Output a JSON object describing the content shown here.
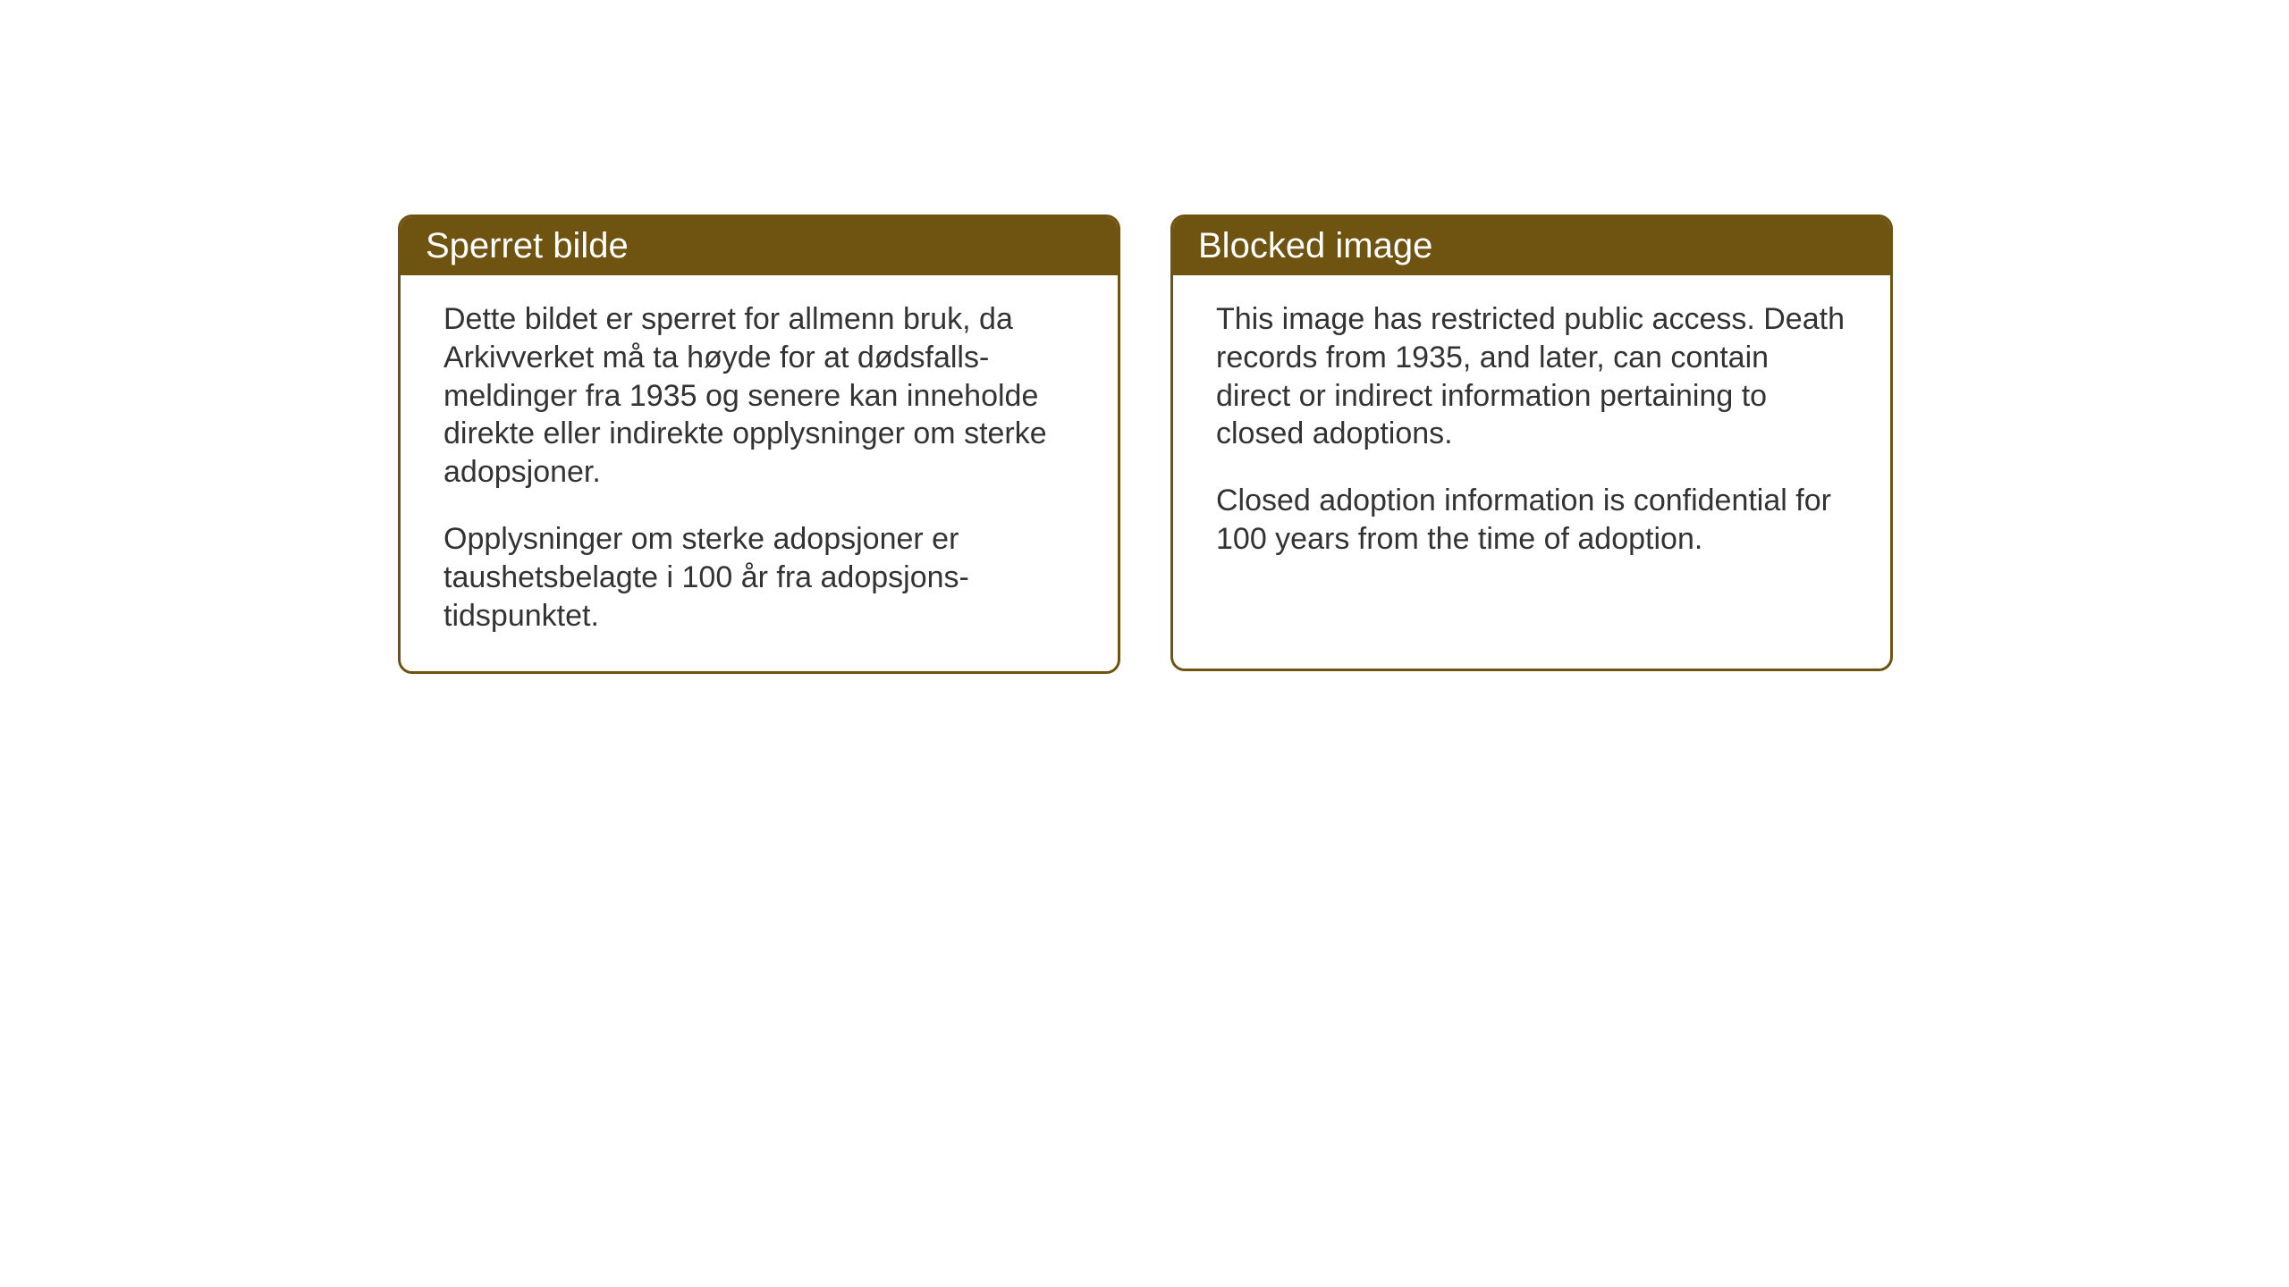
{
  "cards": [
    {
      "title": "Sperret bilde",
      "paragraph1": "Dette bildet er sperret for allmenn bruk, da Arkivverket må ta høyde for at dødsfalls-meldinger fra 1935 og senere kan inneholde direkte eller indirekte opplysninger om sterke adopsjoner.",
      "paragraph2": "Opplysninger om sterke adopsjoner er taushetsbelagte i 100 år fra adopsjons-tidspunktet."
    },
    {
      "title": "Blocked image",
      "paragraph1": "This image has restricted public access. Death records from 1935, and later, can contain direct or indirect information pertaining to closed adoptions.",
      "paragraph2": "Closed adoption information is confidential for 100 years from the time of adoption."
    }
  ],
  "styling": {
    "header_background": "#6f5310",
    "header_text_color": "#ffffff",
    "border_color": "#6f5310",
    "body_background": "#ffffff",
    "body_text_color": "#333333",
    "header_fontsize": 40,
    "body_fontsize": 34,
    "border_radius": 16,
    "border_width": 3
  }
}
